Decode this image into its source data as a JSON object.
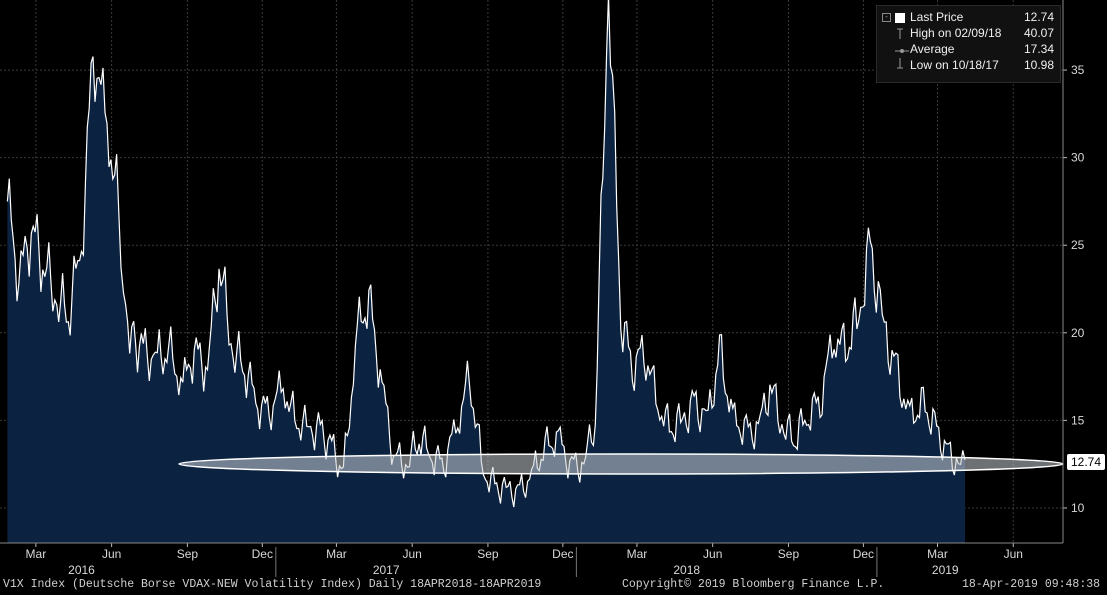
{
  "legend": {
    "last_price_label": "Last Price",
    "last_price_value": "12.74",
    "high_label": "High on 02/09/18",
    "high_value": "40.07",
    "average_label": "Average",
    "average_value": "17.34",
    "low_label": "Low on 10/18/17",
    "low_value": "10.98"
  },
  "price_tag": "12.74",
  "footer": {
    "left": "V1X Index (Deutsche Borse VDAX-NEW Volatility Index)  Daily 18APR2018-18APR2019",
    "center": "Copyright© 2019 Bloomberg Finance L.P.",
    "right": "18-Apr-2019 09:48:38"
  },
  "colors": {
    "background": "#000000",
    "area_fill": "#0b2240",
    "line": "#ffffff",
    "ellipse": "#c8cdd4"
  },
  "chart_data": {
    "type": "area",
    "title": "",
    "xlabel": "",
    "ylabel": "",
    "ylim": [
      8,
      39
    ],
    "y_ticks": [
      10,
      15,
      20,
      25,
      30,
      35
    ],
    "x_tick_labels": [
      "Mar",
      "Jun",
      "Sep",
      "Dec",
      "Mar",
      "Jun",
      "Sep",
      "Dec",
      "Mar",
      "Jun",
      "Sep",
      "Dec",
      "Mar",
      "Jun"
    ],
    "year_labels": [
      "2016",
      "2017",
      "2018",
      "2019"
    ],
    "grid": true,
    "series": [
      {
        "x": [
          "2016-02-10",
          "2016-02-24",
          "2016-03-10",
          "2016-03-24",
          "2016-04-10",
          "2016-04-24",
          "2016-05-10",
          "2016-05-24",
          "2016-06-10",
          "2016-06-24",
          "2016-06-30",
          "2016-07-10",
          "2016-07-24",
          "2016-08-10",
          "2016-08-24",
          "2016-09-10",
          "2016-09-24",
          "2016-10-10",
          "2016-10-24",
          "2016-11-10",
          "2016-11-24",
          "2016-12-10",
          "2016-12-24",
          "2017-01-10",
          "2017-01-24",
          "2017-02-10",
          "2017-02-24",
          "2017-03-10",
          "2017-03-24",
          "2017-04-10",
          "2017-04-24",
          "2017-05-10",
          "2017-05-24",
          "2017-06-10",
          "2017-06-24",
          "2017-07-10",
          "2017-07-24",
          "2017-08-10",
          "2017-08-24",
          "2017-09-10",
          "2017-09-24",
          "2017-10-10",
          "2017-10-24",
          "2017-11-10",
          "2017-11-24",
          "2017-12-10",
          "2017-12-24",
          "2018-01-10",
          "2018-01-24",
          "2018-02-09",
          "2018-02-24",
          "2018-03-10",
          "2018-03-24",
          "2018-04-10",
          "2018-04-24",
          "2018-05-10",
          "2018-05-24",
          "2018-06-10",
          "2018-06-24",
          "2018-07-10",
          "2018-07-24",
          "2018-08-10",
          "2018-08-24",
          "2018-09-10",
          "2018-09-24",
          "2018-10-10",
          "2018-10-24",
          "2018-11-10",
          "2018-11-24",
          "2018-12-10",
          "2018-12-24",
          "2019-01-10",
          "2019-01-24",
          "2019-02-10",
          "2019-02-24",
          "2019-03-10",
          "2019-03-24",
          "2019-04-10",
          "2019-04-18"
        ],
        "values": [
          27.5,
          23,
          26,
          24,
          22,
          21,
          25,
          36,
          32,
          27,
          22,
          20,
          19,
          18.5,
          19,
          17,
          19,
          18,
          24,
          19,
          18,
          16,
          15.5,
          17,
          15,
          14.5,
          14.5,
          13.5,
          12,
          20,
          22,
          17,
          13,
          12.5,
          14,
          13,
          12.5,
          15,
          17.5,
          12,
          11.3,
          11,
          10.98,
          12,
          13.5,
          14,
          12.5,
          12.5,
          15,
          40.07,
          21,
          18,
          19,
          16,
          14.5,
          15,
          16,
          15,
          19,
          15,
          14.5,
          14.5,
          17,
          14.5,
          14,
          15.5,
          16,
          20,
          19,
          21,
          25,
          20,
          18,
          15,
          16,
          15,
          13.5,
          12.5,
          12.74
        ]
      }
    ],
    "average": 17.34,
    "last": 12.74
  }
}
